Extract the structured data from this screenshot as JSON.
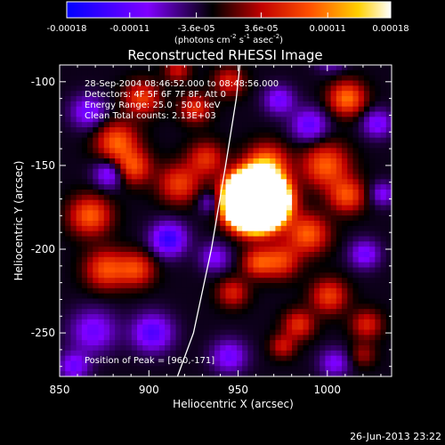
{
  "colorbar": {
    "ticks": [
      "-0.00018",
      "-0.00011",
      "-3.6e-05",
      "3.6e-05",
      "0.00011",
      "0.00018"
    ],
    "tick_values": [
      -0.00018,
      -0.00011,
      -3.6e-05,
      3.6e-05,
      0.00011,
      0.00018
    ],
    "range": [
      -0.00018,
      0.00018
    ],
    "units": {
      "open": "(photons cm",
      "exp1": "-2",
      "mid1": " s",
      "exp2": "-1",
      "mid2": " asec",
      "exp3": "-2",
      "close": ")"
    }
  },
  "annotations": {
    "time_range": "28-Sep-2004 08:46:52.000 to 08:48:56.000",
    "detectors": "Detectors: 4F 5F 6F 7F 8F, Att 0",
    "energy": "Energy Range: 25.0 - 50.0 keV",
    "clean": "Clean    Total counts: 2.13E+03",
    "peak": "Position of Peak = [960,-171]"
  },
  "footer_date": "26-Jun-2013 23:22",
  "chart_data": {
    "type": "heatmap",
    "title": "Reconstructed RHESSI Image",
    "xlabel": "Heliocentric X (arcsec)",
    "ylabel": "Heliocentric Y (arcsec)",
    "xlim": [
      850,
      1036
    ],
    "ylim": [
      -276,
      -90
    ],
    "x_ticks": [
      850,
      900,
      950,
      1000
    ],
    "y_ticks": [
      -100,
      -150,
      -200,
      -250
    ],
    "colormap": "blue-purple-black-red-orange-yellow-white",
    "peak_position": [
      960,
      -171
    ],
    "limb_curve": [
      [
        916,
        -276
      ],
      [
        925,
        -250
      ],
      [
        935,
        -200
      ],
      [
        943,
        -150
      ],
      [
        949,
        -110
      ],
      [
        951,
        -90
      ]
    ],
    "blobs": [
      [
        960,
        -171,
        9,
        0.0018
      ],
      [
        966,
        -149,
        8,
        0.00013
      ],
      [
        1011,
        -110,
        7,
        0.00013
      ],
      [
        999,
        -150,
        9,
        0.00012
      ],
      [
        1011,
        -168,
        7,
        0.00011
      ],
      [
        989,
        -191,
        8,
        0.00012
      ],
      [
        974,
        -207,
        7,
        0.0001
      ],
      [
        961,
        -208,
        6,
        0.0001
      ],
      [
        867,
        -180,
        8,
        0.00012
      ],
      [
        882,
        -136,
        8,
        0.00012
      ],
      [
        891,
        -151,
        7,
        0.00011
      ],
      [
        876,
        -212,
        8,
        0.00011
      ],
      [
        893,
        -212,
        7,
        0.0001
      ],
      [
        917,
        -161,
        8,
        0.0001
      ],
      [
        896,
        -110,
        7,
        0.0001
      ],
      [
        932,
        -146,
        7,
        9e-05
      ],
      [
        984,
        -245,
        6,
        9e-05
      ],
      [
        1001,
        -228,
        7,
        0.0001
      ],
      [
        1022,
        -245,
        6,
        8e-05
      ],
      [
        975,
        -258,
        5,
        7e-05
      ],
      [
        947,
        -226,
        6,
        8e-05
      ],
      [
        926,
        -116,
        6,
        9e-05
      ],
      [
        916,
        -93,
        5,
        7e-05
      ],
      [
        945,
        -100,
        6,
        8e-05
      ],
      [
        1020,
        -263,
        5,
        5e-05
      ],
      [
        911,
        -194,
        7,
        -0.00012
      ],
      [
        869,
        -249,
        9,
        -8e-05
      ],
      [
        902,
        -250,
        8,
        -0.0001
      ],
      [
        878,
        -155,
        6,
        -9e-05
      ],
      [
        937,
        -205,
        6,
        -7e-05
      ],
      [
        866,
        -118,
        7,
        -8e-05
      ],
      [
        973,
        -111,
        6,
        -8e-05
      ],
      [
        990,
        -126,
        7,
        -9e-05
      ],
      [
        1028,
        -125,
        6,
        -8e-05
      ],
      [
        1031,
        -167,
        5,
        -7e-05
      ],
      [
        1021,
        -203,
        6,
        -8e-05
      ],
      [
        1004,
        -268,
        6,
        -7e-05
      ],
      [
        945,
        -264,
        7,
        -8e-05
      ],
      [
        858,
        -270,
        6,
        -8e-05
      ],
      [
        935,
        -172,
        5,
        -7e-05
      ],
      [
        1002,
        -85,
        6,
        -7e-05
      ]
    ]
  }
}
